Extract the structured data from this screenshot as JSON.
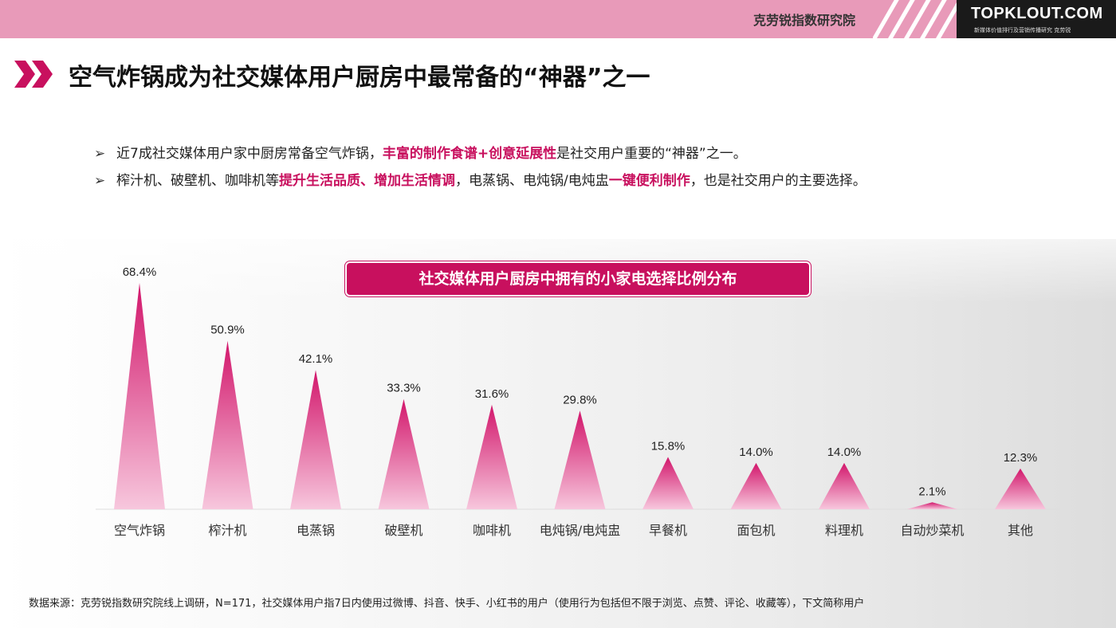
{
  "header": {
    "institute": "克劳锐指数研究院",
    "logo_text": "TOPKLOUT.COM",
    "logo_sub": "新媒体价值排行及营销传播研究 克劳锐"
  },
  "title": "空气炸锅成为社交媒体用户厨房中最常备的“神器”之一",
  "bullets": [
    {
      "mark": "➢",
      "parts": [
        "近7成社交媒体用户家中厨房常备空气炸锅，",
        "丰富的制作食谱+创意延展性",
        "是社交用户重要的“神器”之一。"
      ]
    },
    {
      "mark": "➢",
      "parts": [
        "榨汁机、破壁机、咖啡机等",
        "提升生活品质、增加生活情调",
        "，电蒸锅、电炖锅/电炖盅",
        "一键便利制作",
        "，也是社交用户的主要选择。"
      ]
    }
  ],
  "chart_data": {
    "type": "bar",
    "title": "社交媒体用户厨房中拥有的小家电选择比例分布",
    "categories": [
      "空气炸锅",
      "榨汁机",
      "电蒸锅",
      "破壁机",
      "咖啡机",
      "电炖锅/电炖盅",
      "早餐机",
      "面包机",
      "料理机",
      "自动炒菜机",
      "其他"
    ],
    "values": [
      68.4,
      50.9,
      42.1,
      33.3,
      31.6,
      29.8,
      15.8,
      14.0,
      14.0,
      2.1,
      12.3
    ],
    "value_labels": [
      "68.4%",
      "50.9%",
      "42.1%",
      "33.3%",
      "31.6%",
      "29.8%",
      "15.8%",
      "14.0%",
      "14.0%",
      "2.1%",
      "12.3%"
    ],
    "xlabel": "",
    "ylabel": "",
    "ylim": [
      0,
      70
    ],
    "grid": false,
    "colors": {
      "top": "#d2166b",
      "bottom": "#f7c7dd"
    }
  },
  "source": "数据来源：克劳锐指数研究院线上调研，N=171，社交媒体用户指7日内使用过微博、抖音、快手、小红书的用户（使用行为包括但不限于浏览、点赞、评论、收藏等），下文简称用户"
}
